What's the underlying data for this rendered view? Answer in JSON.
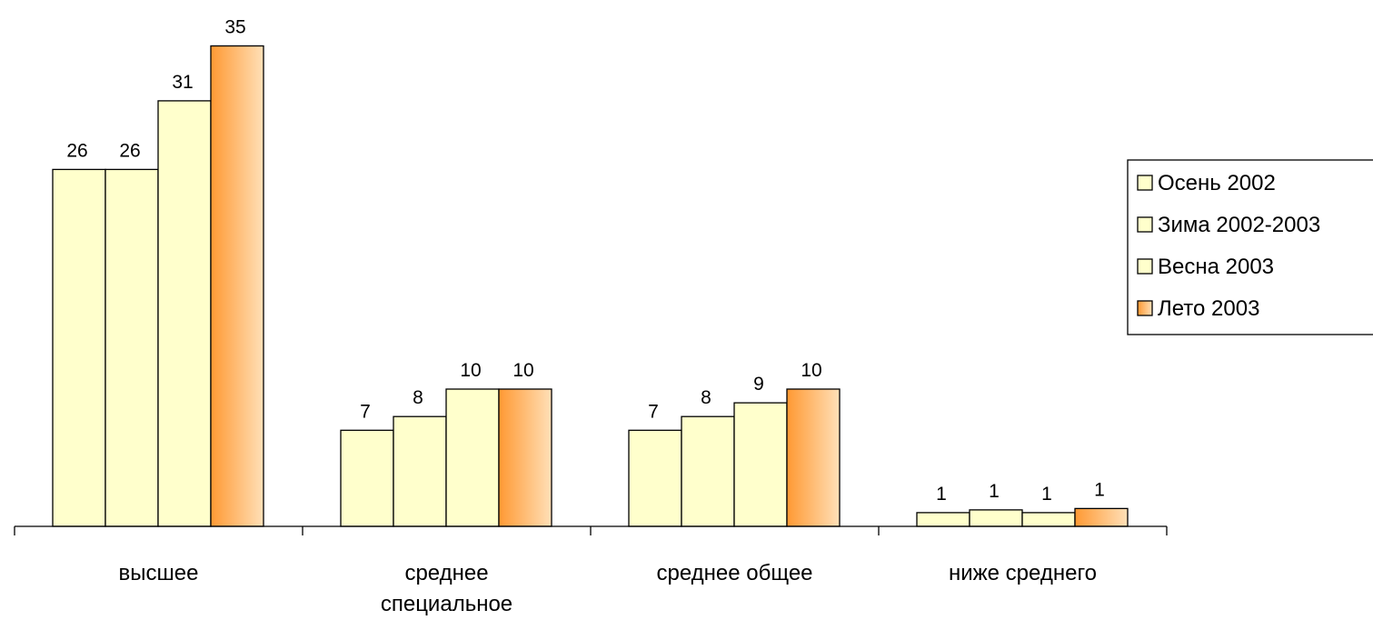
{
  "chart_data": {
    "type": "bar",
    "categories": [
      [
        "высшее"
      ],
      [
        "среднее",
        "специальное"
      ],
      [
        "среднее общее"
      ],
      [
        "ниже среднего"
      ]
    ],
    "series": [
      {
        "name": "Осень 2002",
        "values": [
          26,
          7,
          7,
          1
        ],
        "labels": [
          "26",
          "7",
          "7",
          "1"
        ],
        "color": "#FFFFCC"
      },
      {
        "name": "Зима 2002-2003",
        "values": [
          26,
          8,
          8,
          1.2
        ],
        "labels": [
          "26",
          "8",
          "8",
          "1"
        ],
        "color": "#FFFFCC"
      },
      {
        "name": "Весна 2003",
        "values": [
          31,
          10,
          9,
          1
        ],
        "labels": [
          "31",
          "10",
          "9",
          "1"
        ],
        "color": "#FFFFCC"
      },
      {
        "name": "Лето 2003",
        "values": [
          35,
          10,
          10,
          1.3
        ],
        "labels": [
          "35",
          "10",
          "10",
          "1"
        ],
        "color": "#FF9933",
        "gradient_to": "#FFE0B8"
      }
    ],
    "ylim": [
      0,
      38
    ],
    "legend": "right",
    "grid": false
  }
}
